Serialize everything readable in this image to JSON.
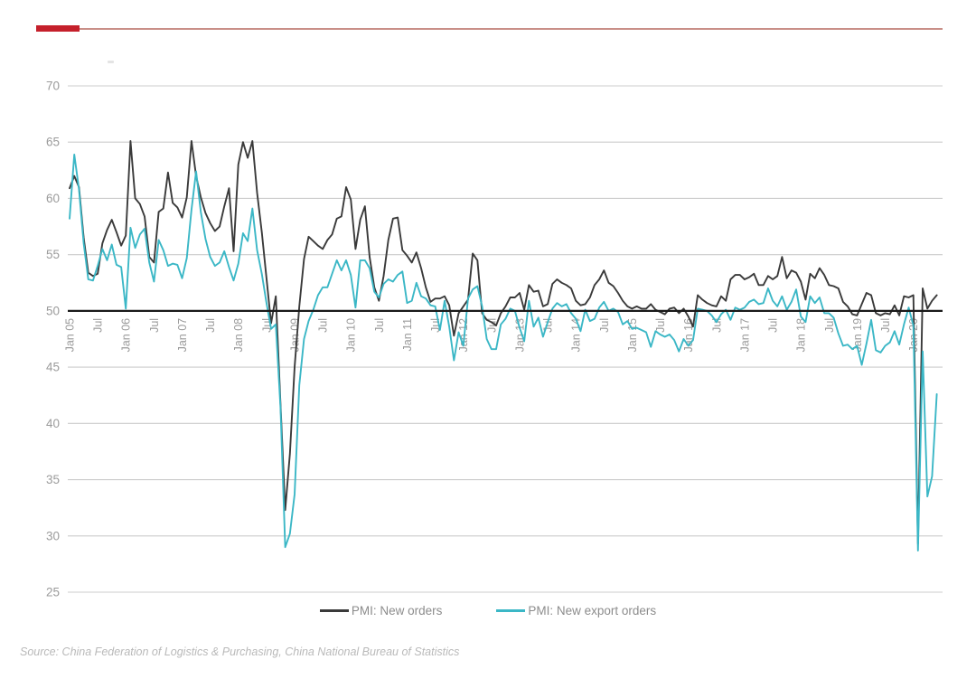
{
  "header": {
    "accent_bar_color": "#c5202b",
    "accent_rule_color": "#c98f88"
  },
  "footer": {
    "source": "Source: China Federation of Logistics & Purchasing, China National Bureau of Statistics"
  },
  "chart_data": {
    "type": "line",
    "x_start": "Jan 2005",
    "x_end": "Jun 2020",
    "x_interval": "monthly",
    "ylim": [
      25,
      70
    ],
    "yticks": [
      70,
      65,
      60,
      55,
      50,
      45,
      40,
      35,
      30,
      25
    ],
    "ref_line": 50,
    "grid": true,
    "legend_position": "bottom",
    "axis_text_color": "#9b9b9b",
    "grid_color": "#cccccc",
    "ref_line_color": "#1a1a1a",
    "xtick_labels": [
      "Jan 05",
      "Jul",
      "Jan 06",
      "Jul",
      "Jan 07",
      "Jul",
      "Jan 08",
      "Jul",
      "Jan 09",
      "Jul",
      "Jan 10",
      "Jul",
      "Jan 11",
      "Jul",
      "Jan 12",
      "Jul",
      "Jan 13",
      "Jul",
      "Jan 14",
      "Jul",
      "Jan 15",
      "Jul",
      "Jan 16",
      "Jul",
      "Jan 17",
      "Jul",
      "Jan 18",
      "Jul",
      "Jan 19",
      "Jul",
      "Jan 20"
    ],
    "series": [
      {
        "name": "PMI: New orders",
        "color": "#3a3a3a",
        "values": [
          60.9,
          62.0,
          61.0,
          56.5,
          53.4,
          53.1,
          53.3,
          56.0,
          57.2,
          58.1,
          57.0,
          55.8,
          56.7,
          65.1,
          60.0,
          59.5,
          58.4,
          54.8,
          54.3,
          58.8,
          59.1,
          62.3,
          59.6,
          59.2,
          58.3,
          60.1,
          65.1,
          62.0,
          60.1,
          58.7,
          57.8,
          57.1,
          57.5,
          59.3,
          60.9,
          55.3,
          63.0,
          65.0,
          63.6,
          65.1,
          60.5,
          57.0,
          52.9,
          48.9,
          51.3,
          41.7,
          32.3,
          37.3,
          45.0,
          50.4,
          54.6,
          56.6,
          56.2,
          55.8,
          55.5,
          56.3,
          56.8,
          58.2,
          58.4,
          61.0,
          59.9,
          55.5,
          58.1,
          59.3,
          54.8,
          52.1,
          50.9,
          53.1,
          56.3,
          58.2,
          58.3,
          55.4,
          54.9,
          54.3,
          55.2,
          53.8,
          52.1,
          50.8,
          51.1,
          51.1,
          51.3,
          50.5,
          47.8,
          49.8,
          50.4,
          51.0,
          55.1,
          54.5,
          49.8,
          49.2,
          49.0,
          48.7,
          49.8,
          50.4,
          51.2,
          51.2,
          51.6,
          50.1,
          52.3,
          51.7,
          51.8,
          50.4,
          50.6,
          52.4,
          52.8,
          52.5,
          52.3,
          52.0,
          50.9,
          50.5,
          50.6,
          51.2,
          52.3,
          52.8,
          53.6,
          52.5,
          52.2,
          51.6,
          50.9,
          50.4,
          50.2,
          50.4,
          50.2,
          50.2,
          50.6,
          50.1,
          49.9,
          49.7,
          50.2,
          50.3,
          49.8,
          50.2,
          49.5,
          48.6,
          51.4,
          51.0,
          50.7,
          50.5,
          50.4,
          51.3,
          50.9,
          52.8,
          53.2,
          53.2,
          52.8,
          53.0,
          53.3,
          52.3,
          52.3,
          53.1,
          52.8,
          53.1,
          54.8,
          52.9,
          53.6,
          53.4,
          52.6,
          51.0,
          53.3,
          52.9,
          53.8,
          53.2,
          52.3,
          52.2,
          52.0,
          50.8,
          50.4,
          49.7,
          49.6,
          50.6,
          51.6,
          51.4,
          49.8,
          49.6,
          49.8,
          49.7,
          50.5,
          49.6,
          51.3,
          51.2,
          51.4,
          29.3,
          52.0,
          50.2,
          50.9,
          51.4
        ]
      },
      {
        "name": "PMI: New export orders",
        "color": "#3bb7c6",
        "values": [
          58.2,
          63.9,
          60.8,
          56.0,
          52.8,
          52.7,
          54.0,
          55.5,
          54.5,
          55.9,
          54.1,
          53.9,
          50.2,
          57.4,
          55.6,
          56.8,
          57.3,
          54.3,
          52.6,
          56.3,
          55.4,
          54.0,
          54.2,
          54.1,
          52.9,
          54.7,
          59.0,
          62.4,
          58.8,
          56.4,
          54.8,
          54.0,
          54.3,
          55.3,
          53.9,
          52.7,
          54.2,
          56.9,
          56.2,
          59.1,
          55.4,
          53.3,
          50.7,
          48.4,
          48.8,
          41.4,
          29.0,
          30.2,
          33.7,
          43.4,
          47.5,
          49.1,
          50.1,
          51.4,
          52.1,
          52.1,
          53.3,
          54.5,
          53.6,
          54.5,
          53.2,
          50.3,
          54.5,
          54.5,
          53.8,
          51.7,
          51.2,
          52.4,
          52.8,
          52.6,
          53.2,
          53.5,
          50.7,
          50.9,
          52.5,
          51.3,
          51.1,
          50.5,
          50.4,
          48.3,
          50.9,
          48.6,
          45.6,
          48.1,
          46.9,
          51.1,
          51.9,
          52.2,
          50.4,
          47.5,
          46.6,
          46.6,
          48.8,
          49.3,
          50.2,
          50.0,
          48.5,
          47.3,
          50.9,
          48.6,
          49.4,
          47.7,
          49.0,
          50.2,
          50.7,
          50.4,
          50.6,
          49.8,
          49.3,
          48.2,
          50.1,
          49.1,
          49.3,
          50.3,
          50.8,
          50.0,
          50.2,
          49.9,
          48.8,
          49.1,
          48.4,
          48.5,
          48.3,
          48.1,
          46.8,
          48.2,
          47.9,
          47.7,
          47.9,
          47.4,
          46.4,
          47.5,
          46.9,
          47.4,
          50.2,
          50.1,
          50.0,
          49.6,
          49.0,
          49.7,
          50.1,
          49.2,
          50.3,
          50.1,
          50.3,
          50.8,
          51.0,
          50.6,
          50.7,
          52.0,
          50.9,
          50.4,
          51.3,
          50.1,
          50.8,
          51.9,
          49.5,
          49.0,
          51.3,
          50.7,
          51.2,
          49.8,
          49.8,
          49.4,
          48.0,
          46.9,
          47.0,
          46.6,
          46.9,
          45.2,
          47.1,
          49.2,
          46.5,
          46.3,
          46.9,
          47.2,
          48.2,
          47.0,
          48.8,
          50.3,
          48.7,
          28.7,
          46.4,
          33.5,
          35.3,
          42.6
        ]
      }
    ]
  }
}
